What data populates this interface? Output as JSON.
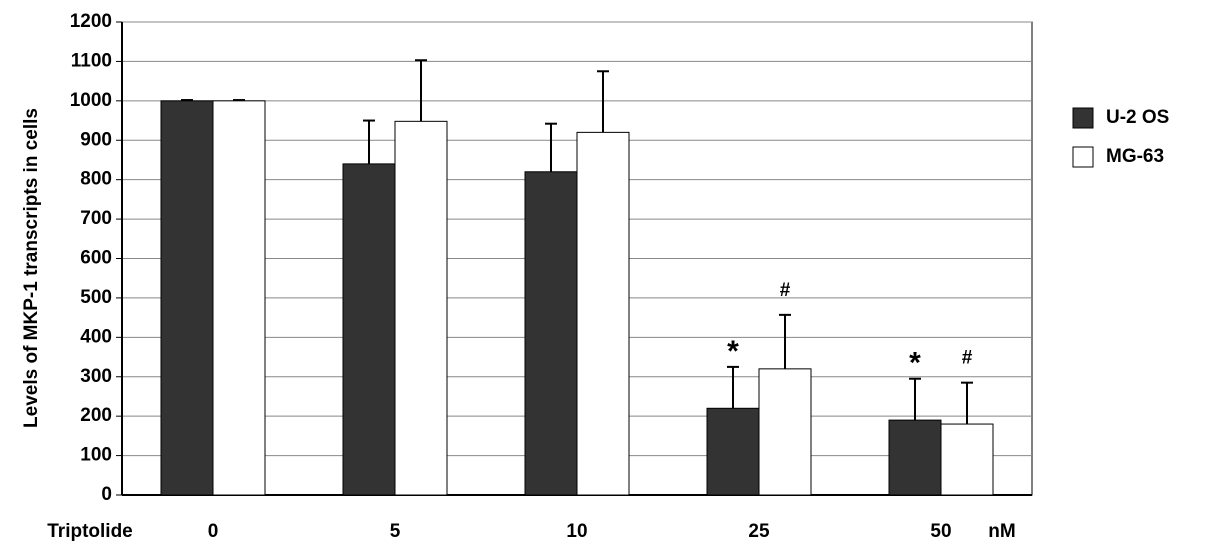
{
  "chart_data": {
    "type": "bar",
    "y_label": "Levels of MKP-1 transcripts in cells",
    "x_label": "Triptolide",
    "x_unit": "nM",
    "categories": [
      "0",
      "5",
      "10",
      "25",
      "50"
    ],
    "series": [
      {
        "name": "U-2 OS",
        "color": "#333333",
        "values": [
          1000,
          840,
          820,
          220,
          190
        ],
        "errors": [
          2,
          110,
          122,
          105,
          105
        ],
        "annotations": [
          null,
          null,
          null,
          "*",
          "*"
        ]
      },
      {
        "name": "MG-63",
        "color": "#ffffff",
        "values": [
          1000,
          948,
          920,
          320,
          180
        ],
        "errors": [
          2,
          155,
          155,
          137,
          105
        ],
        "annotations": [
          null,
          null,
          null,
          "#",
          "#"
        ]
      }
    ],
    "ylim": [
      0,
      1200
    ],
    "yticks": [
      0,
      100,
      200,
      300,
      400,
      500,
      600,
      700,
      800,
      900,
      1000,
      1100,
      1200
    ],
    "grid": true,
    "legend": "right"
  }
}
